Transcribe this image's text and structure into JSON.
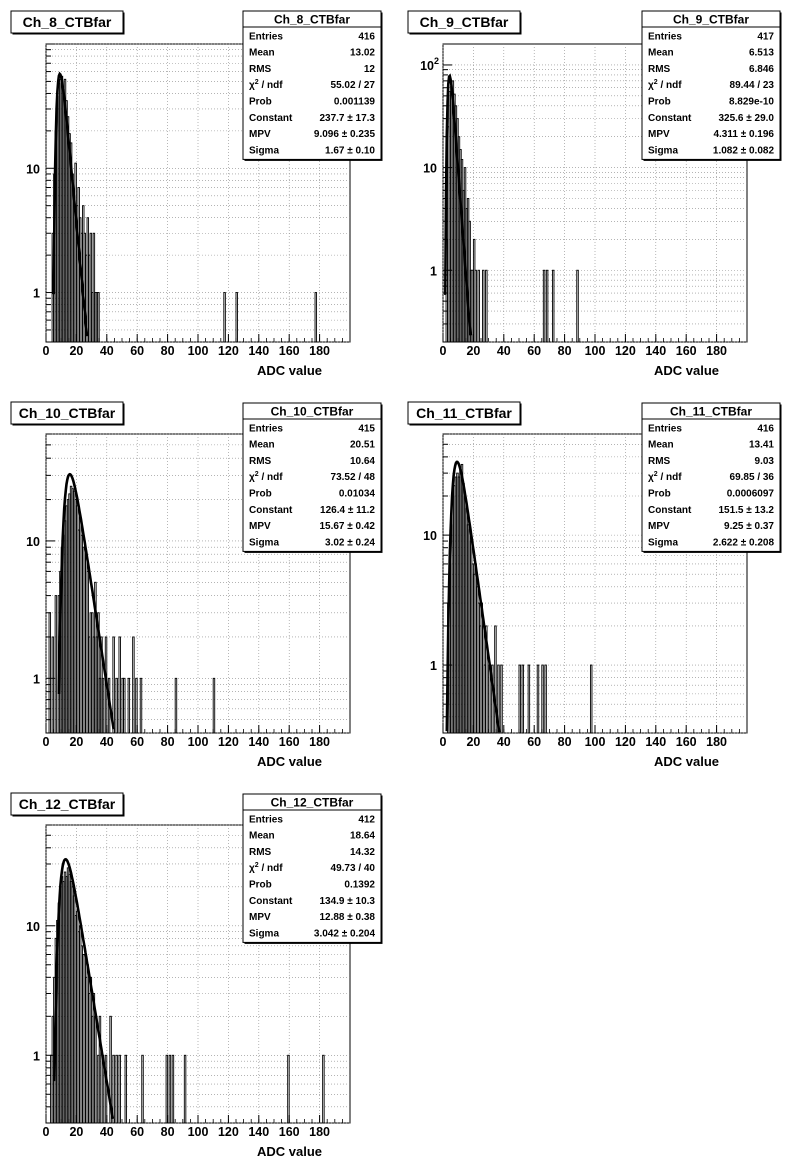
{
  "chart_data": [
    {
      "type": "histogram",
      "title": "Ch_8_CTBfar",
      "xlabel": "ADC value",
      "x_ticks": [
        0,
        20,
        40,
        60,
        80,
        100,
        120,
        140,
        160,
        180
      ],
      "xlim": [
        0,
        200
      ],
      "y_scale": "log",
      "y_tick_labels": [
        "1",
        "10"
      ],
      "ylim": [
        0.4,
        100
      ],
      "grid": true,
      "stats": [
        {
          "label": "Entries",
          "value": "416"
        },
        {
          "label": "Mean",
          "value": "13.02"
        },
        {
          "label": "RMS",
          "value": "12"
        },
        {
          "label": "χ² / ndf",
          "value": "55.02 / 27"
        },
        {
          "label": "Prob",
          "value": "0.001139"
        },
        {
          "label": "Constant",
          "value": "237.7 ± 17.3"
        },
        {
          "label": "MPV",
          "value": "9.096 ± 0.235"
        },
        {
          "label": "Sigma",
          "value": "1.67 ± 0.10"
        }
      ],
      "fit": {
        "type": "landau",
        "constant": 237.7,
        "mpv": 9.096,
        "sigma": 1.67
      },
      "bins": [
        [
          4,
          3
        ],
        [
          5,
          9
        ],
        [
          6,
          20
        ],
        [
          7,
          38
        ],
        [
          8,
          48
        ],
        [
          9,
          52
        ],
        [
          10,
          55
        ],
        [
          11,
          43
        ],
        [
          12,
          52
        ],
        [
          13,
          35
        ],
        [
          14,
          26
        ],
        [
          15,
          19
        ],
        [
          16,
          16
        ],
        [
          17,
          9
        ],
        [
          18,
          6
        ],
        [
          19,
          11
        ],
        [
          20,
          5
        ],
        [
          21,
          7
        ],
        [
          22,
          4
        ],
        [
          23,
          3
        ],
        [
          24,
          5
        ],
        [
          25,
          3
        ],
        [
          26,
          2
        ],
        [
          27,
          4
        ],
        [
          28,
          2
        ],
        [
          29,
          3
        ],
        [
          30,
          1
        ],
        [
          31,
          3
        ],
        [
          32,
          1
        ],
        [
          33,
          1
        ],
        [
          34,
          1
        ],
        [
          117,
          1
        ],
        [
          125,
          1
        ],
        [
          177,
          1
        ]
      ]
    },
    {
      "type": "histogram",
      "title": "Ch_9_CTBfar",
      "xlabel": "ADC value",
      "x_ticks": [
        0,
        20,
        40,
        60,
        80,
        100,
        120,
        140,
        160,
        180
      ],
      "xlim": [
        0,
        200
      ],
      "y_scale": "log",
      "y_tick_labels": [
        "1",
        "10",
        "10²"
      ],
      "ylim": [
        0.2,
        160
      ],
      "grid": true,
      "stats": [
        {
          "label": "Entries",
          "value": "417"
        },
        {
          "label": "Mean",
          "value": "6.513"
        },
        {
          "label": "RMS",
          "value": "6.846"
        },
        {
          "label": "χ² / ndf",
          "value": "89.44 / 23"
        },
        {
          "label": "Prob",
          "value": "8.829e-10"
        },
        {
          "label": "Constant",
          "value": "325.6 ± 29.0"
        },
        {
          "label": "MPV",
          "value": "4.311 ± 0.196"
        },
        {
          "label": "Sigma",
          "value": "1.082 ± 0.082"
        }
      ],
      "fit": {
        "type": "landau",
        "constant": 325.6,
        "mpv": 4.311,
        "sigma": 1.082
      },
      "bins": [
        [
          2,
          2
        ],
        [
          3,
          25
        ],
        [
          4,
          55
        ],
        [
          5,
          62
        ],
        [
          6,
          70
        ],
        [
          7,
          52
        ],
        [
          8,
          40
        ],
        [
          9,
          30
        ],
        [
          10,
          20
        ],
        [
          11,
          15
        ],
        [
          12,
          12
        ],
        [
          13,
          6
        ],
        [
          14,
          10
        ],
        [
          15,
          4
        ],
        [
          16,
          5
        ],
        [
          17,
          3
        ],
        [
          18,
          1
        ],
        [
          19,
          1
        ],
        [
          20,
          2
        ],
        [
          21,
          1
        ],
        [
          23,
          1
        ],
        [
          26,
          1
        ],
        [
          28,
          1
        ],
        [
          66,
          1
        ],
        [
          68,
          1
        ],
        [
          72,
          1
        ],
        [
          88,
          1
        ]
      ]
    },
    {
      "type": "histogram",
      "title": "Ch_10_CTBfar",
      "xlabel": "ADC value",
      "x_ticks": [
        0,
        20,
        40,
        60,
        80,
        100,
        120,
        140,
        160,
        180
      ],
      "xlim": [
        0,
        200
      ],
      "y_scale": "log",
      "y_tick_labels": [
        "1",
        "10"
      ],
      "ylim": [
        0.4,
        60
      ],
      "grid": true,
      "stats": [
        {
          "label": "Entries",
          "value": "415"
        },
        {
          "label": "Mean",
          "value": "20.51"
        },
        {
          "label": "RMS",
          "value": "10.64"
        },
        {
          "label": "χ² / ndf",
          "value": "73.52 / 48"
        },
        {
          "label": "Prob",
          "value": "0.01034"
        },
        {
          "label": "Constant",
          "value": "126.4 ± 11.2"
        },
        {
          "label": "MPV",
          "value": "15.67 ± 0.42"
        },
        {
          "label": "Sigma",
          "value": "3.02 ± 0.24"
        }
      ],
      "fit": {
        "type": "landau",
        "constant": 126.4,
        "mpv": 15.67,
        "sigma": 3.02
      },
      "bins": [
        [
          2,
          3
        ],
        [
          4,
          2
        ],
        [
          6,
          4
        ],
        [
          8,
          4
        ],
        [
          9,
          6
        ],
        [
          10,
          9
        ],
        [
          11,
          11
        ],
        [
          12,
          14
        ],
        [
          13,
          18
        ],
        [
          14,
          20
        ],
        [
          15,
          22
        ],
        [
          16,
          25
        ],
        [
          17,
          24
        ],
        [
          18,
          23
        ],
        [
          19,
          20
        ],
        [
          20,
          18
        ],
        [
          21,
          12
        ],
        [
          22,
          15
        ],
        [
          23,
          11
        ],
        [
          24,
          9
        ],
        [
          25,
          9
        ],
        [
          26,
          8
        ],
        [
          27,
          6
        ],
        [
          28,
          2
        ],
        [
          29,
          3
        ],
        [
          30,
          3
        ],
        [
          31,
          2
        ],
        [
          32,
          5
        ],
        [
          33,
          2
        ],
        [
          34,
          3
        ],
        [
          35,
          1
        ],
        [
          36,
          2
        ],
        [
          37,
          1
        ],
        [
          39,
          2
        ],
        [
          41,
          1
        ],
        [
          44,
          2
        ],
        [
          46,
          1
        ],
        [
          48,
          2
        ],
        [
          50,
          1
        ],
        [
          51,
          1
        ],
        [
          54,
          1
        ],
        [
          57,
          2
        ],
        [
          59,
          1
        ],
        [
          62,
          1
        ],
        [
          85,
          1
        ],
        [
          110,
          1
        ]
      ]
    },
    {
      "type": "histogram",
      "title": "Ch_11_CTBfar",
      "xlabel": "ADC value",
      "x_ticks": [
        0,
        20,
        40,
        60,
        80,
        100,
        120,
        140,
        160,
        180
      ],
      "xlim": [
        0,
        200
      ],
      "y_scale": "log",
      "y_tick_labels": [
        "1",
        "10"
      ],
      "ylim": [
        0.3,
        60
      ],
      "grid": true,
      "stats": [
        {
          "label": "Entries",
          "value": "416"
        },
        {
          "label": "Mean",
          "value": "13.41"
        },
        {
          "label": "RMS",
          "value": "9.03"
        },
        {
          "label": "χ² / ndf",
          "value": "69.85 / 36"
        },
        {
          "label": "Prob",
          "value": "0.0006097"
        },
        {
          "label": "Constant",
          "value": "151.5 ± 13.2"
        },
        {
          "label": "MPV",
          "value": "9.25 ± 0.37"
        },
        {
          "label": "Sigma",
          "value": "2.622 ± 0.208"
        }
      ],
      "fit": {
        "type": "landau",
        "constant": 151.5,
        "mpv": 9.25,
        "sigma": 2.622
      },
      "bins": [
        [
          3,
          3
        ],
        [
          4,
          6
        ],
        [
          5,
          12
        ],
        [
          6,
          20
        ],
        [
          7,
          24
        ],
        [
          8,
          28
        ],
        [
          9,
          30
        ],
        [
          10,
          28
        ],
        [
          11,
          32
        ],
        [
          12,
          35
        ],
        [
          13,
          25
        ],
        [
          14,
          20
        ],
        [
          15,
          16
        ],
        [
          16,
          12
        ],
        [
          17,
          11
        ],
        [
          18,
          9
        ],
        [
          19,
          6
        ],
        [
          20,
          5
        ],
        [
          21,
          6
        ],
        [
          22,
          4
        ],
        [
          23,
          3
        ],
        [
          24,
          2
        ],
        [
          25,
          3
        ],
        [
          26,
          2
        ],
        [
          27,
          1
        ],
        [
          28,
          2
        ],
        [
          30,
          1
        ],
        [
          32,
          1
        ],
        [
          34,
          2
        ],
        [
          36,
          1
        ],
        [
          38,
          1
        ],
        [
          50,
          1
        ],
        [
          52,
          1
        ],
        [
          56,
          1
        ],
        [
          62,
          1
        ],
        [
          65,
          1
        ],
        [
          67,
          1
        ],
        [
          97,
          1
        ]
      ]
    },
    {
      "type": "histogram",
      "title": "Ch_12_CTBfar",
      "xlabel": "ADC value",
      "x_ticks": [
        0,
        20,
        40,
        60,
        80,
        100,
        120,
        140,
        160,
        180
      ],
      "xlim": [
        0,
        200
      ],
      "y_scale": "log",
      "y_tick_labels": [
        "1",
        "10"
      ],
      "ylim": [
        0.3,
        60
      ],
      "grid": true,
      "stats": [
        {
          "label": "Entries",
          "value": "412"
        },
        {
          "label": "Mean",
          "value": "18.64"
        },
        {
          "label": "RMS",
          "value": "14.32"
        },
        {
          "label": "χ² / ndf",
          "value": "49.73 / 40"
        },
        {
          "label": "Prob",
          "value": "0.1392"
        },
        {
          "label": "Constant",
          "value": "134.9 ± 10.3"
        },
        {
          "label": "MPV",
          "value": "12.88 ± 0.38"
        },
        {
          "label": "Sigma",
          "value": "3.042 ± 0.204"
        }
      ],
      "fit": {
        "type": "landau",
        "constant": 134.9,
        "mpv": 12.88,
        "sigma": 3.042
      },
      "bins": [
        [
          3,
          1
        ],
        [
          4,
          2
        ],
        [
          5,
          4
        ],
        [
          6,
          8
        ],
        [
          7,
          11
        ],
        [
          8,
          15
        ],
        [
          9,
          20
        ],
        [
          10,
          24
        ],
        [
          11,
          22
        ],
        [
          12,
          26
        ],
        [
          13,
          24
        ],
        [
          14,
          28
        ],
        [
          15,
          25
        ],
        [
          16,
          22
        ],
        [
          17,
          20
        ],
        [
          18,
          17
        ],
        [
          19,
          12
        ],
        [
          20,
          13
        ],
        [
          21,
          9
        ],
        [
          22,
          10
        ],
        [
          23,
          7
        ],
        [
          24,
          6
        ],
        [
          25,
          6
        ],
        [
          26,
          4
        ],
        [
          27,
          5
        ],
        [
          28,
          3
        ],
        [
          29,
          4
        ],
        [
          30,
          2
        ],
        [
          31,
          3
        ],
        [
          32,
          2
        ],
        [
          34,
          1
        ],
        [
          35,
          2
        ],
        [
          37,
          1
        ],
        [
          39,
          1
        ],
        [
          42,
          2
        ],
        [
          44,
          1
        ],
        [
          46,
          1
        ],
        [
          48,
          1
        ],
        [
          52,
          1
        ],
        [
          63,
          1
        ],
        [
          79,
          1
        ],
        [
          81,
          1
        ],
        [
          83,
          1
        ],
        [
          91,
          1
        ],
        [
          159,
          1
        ],
        [
          182,
          1
        ]
      ]
    }
  ]
}
